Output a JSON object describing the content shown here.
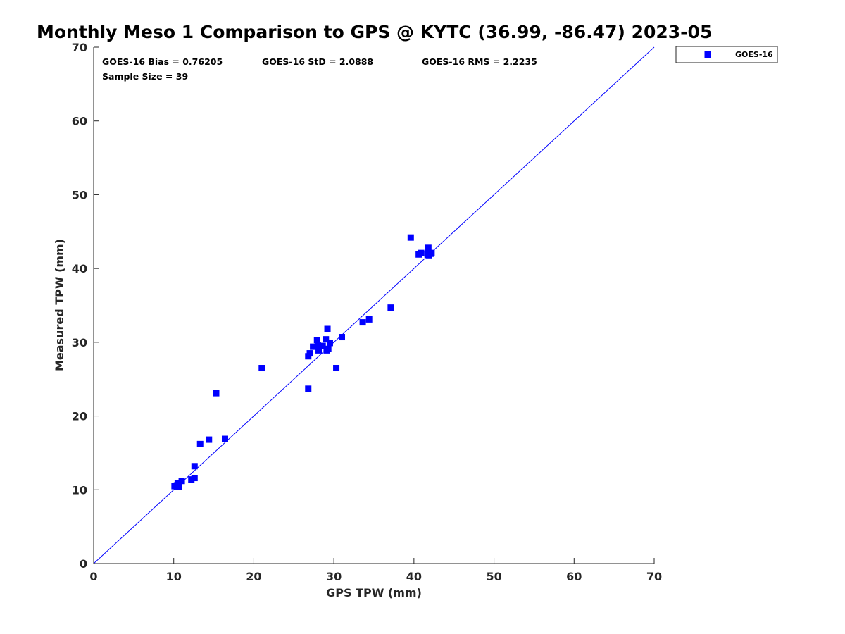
{
  "chart_data": {
    "type": "scatter",
    "title": "Monthly Meso 1 Comparison to GPS @ KYTC (36.99, -86.47) 2023-05",
    "xlabel": "GPS TPW (mm)",
    "ylabel": "Measured TPW (mm)",
    "xlim": [
      0,
      70
    ],
    "ylim": [
      0,
      70
    ],
    "xticks": [
      "0",
      "10",
      "20",
      "30",
      "40",
      "50",
      "60",
      "70"
    ],
    "yticks": [
      "0",
      "10",
      "20",
      "30",
      "40",
      "50",
      "60",
      "70"
    ],
    "grid": false,
    "legend_position": "outside-top-right",
    "reference_line": {
      "name": "1:1 line",
      "from": [
        0,
        0
      ],
      "to": [
        70,
        70
      ],
      "color": "#0000ff"
    },
    "stats": {
      "bias": "GOES-16 Bias = 0.76205",
      "std": "GOES-16 StD = 2.0888",
      "rms": "GOES-16 RMS = 2.2235",
      "sample_size": "Sample Size = 39"
    },
    "series": [
      {
        "name": "GOES-16",
        "color": "#0000ff",
        "marker": "square",
        "x": [
          10.1,
          10.4,
          10.6,
          10.5,
          11.0,
          12.2,
          12.6,
          12.6,
          13.3,
          14.4,
          15.3,
          16.4,
          21.0,
          26.8,
          26.8,
          27.0,
          27.4,
          27.9,
          28.0,
          28.1,
          28.6,
          29.0,
          29.1,
          29.2,
          29.3,
          29.5,
          30.3,
          31.0,
          33.6,
          34.4,
          37.1,
          39.6,
          40.6,
          40.9,
          41.7,
          41.8,
          42.1,
          41.9,
          42.2
        ],
        "y": [
          10.5,
          10.6,
          10.4,
          10.9,
          11.2,
          11.4,
          11.6,
          13.2,
          16.2,
          16.8,
          23.1,
          16.9,
          26.5,
          23.7,
          28.1,
          28.5,
          29.4,
          30.3,
          29.6,
          28.9,
          29.5,
          30.4,
          28.9,
          31.8,
          29.1,
          29.9,
          26.5,
          30.7,
          32.7,
          33.1,
          34.7,
          44.2,
          41.9,
          42.1,
          41.9,
          42.8,
          42.0,
          41.8,
          42.1
        ]
      }
    ]
  }
}
